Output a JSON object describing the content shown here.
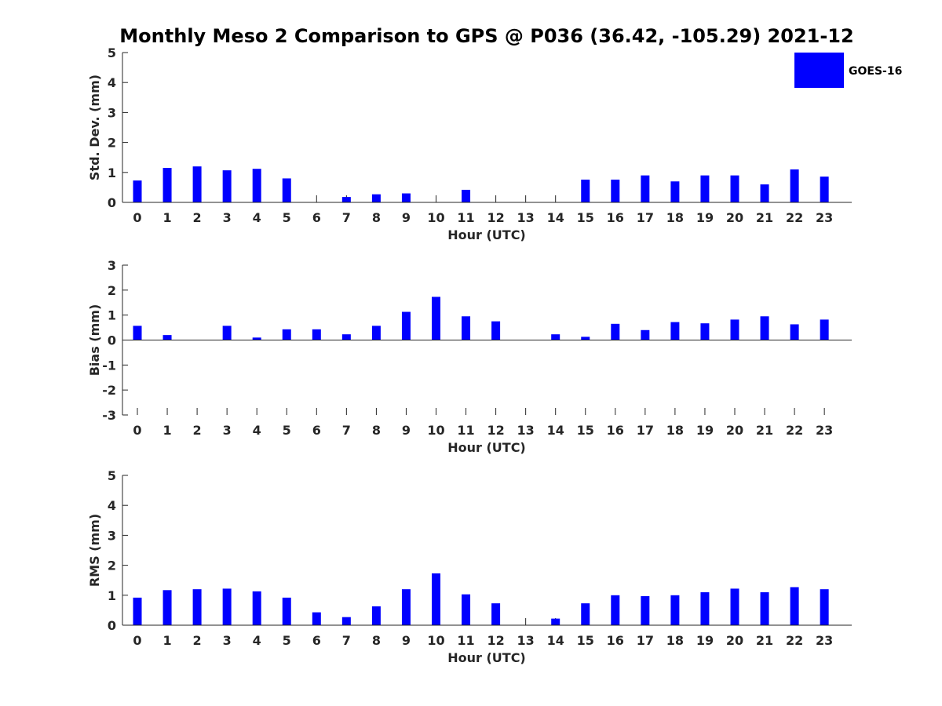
{
  "chart_data": {
    "title": "Monthly Meso 2 Comparison to GPS @ P036 (36.42, -105.29) 2021-12",
    "legend": {
      "label": "GOES-16",
      "color": "#0000ff",
      "placement": "top-right"
    },
    "subplots": [
      {
        "type": "bar",
        "ylabel": "Std. Dev. (mm)",
        "xlabel": "Hour (UTC)",
        "categories": [
          "0",
          "1",
          "2",
          "3",
          "4",
          "5",
          "6",
          "7",
          "8",
          "9",
          "10",
          "11",
          "12",
          "13",
          "14",
          "15",
          "16",
          "17",
          "18",
          "19",
          "20",
          "21",
          "22",
          "23"
        ],
        "ylim": [
          0,
          5
        ],
        "yticks": [
          "0",
          "1",
          "2",
          "3",
          "4",
          "5"
        ],
        "series": [
          {
            "name": "GOES-16",
            "values": [
              0.73,
              1.15,
              1.2,
              1.07,
              1.12,
              0.8,
              0,
              0.18,
              0.27,
              0.3,
              0,
              0.42,
              0,
              0,
              0,
              0.76,
              0.76,
              0.9,
              0.7,
              0.9,
              0.9,
              0.6,
              1.1,
              0.86
            ]
          }
        ]
      },
      {
        "type": "bar",
        "ylabel": "Bias (mm)",
        "xlabel": "Hour (UTC)",
        "categories": [
          "0",
          "1",
          "2",
          "3",
          "4",
          "5",
          "6",
          "7",
          "8",
          "9",
          "10",
          "11",
          "12",
          "13",
          "14",
          "15",
          "16",
          "17",
          "18",
          "19",
          "20",
          "21",
          "22",
          "23"
        ],
        "ylim": [
          -3,
          3
        ],
        "yticks": [
          "-3",
          "-2",
          "-1",
          "0",
          "1",
          "2",
          "3"
        ],
        "series": [
          {
            "name": "GOES-16",
            "values": [
              0.57,
              0.2,
              0,
              0.57,
              0.1,
              0.43,
              0.43,
              0.23,
              0.57,
              1.13,
              1.73,
              0.95,
              0.75,
              0,
              0.23,
              0.13,
              0.65,
              0.4,
              0.72,
              0.67,
              0.82,
              0.95,
              0.63,
              0.82
            ]
          }
        ]
      },
      {
        "type": "bar",
        "ylabel": "RMS (mm)",
        "xlabel": "Hour (UTC)",
        "categories": [
          "0",
          "1",
          "2",
          "3",
          "4",
          "5",
          "6",
          "7",
          "8",
          "9",
          "10",
          "11",
          "12",
          "13",
          "14",
          "15",
          "16",
          "17",
          "18",
          "19",
          "20",
          "21",
          "22",
          "23"
        ],
        "ylim": [
          0,
          5
        ],
        "yticks": [
          "0",
          "1",
          "2",
          "3",
          "4",
          "5"
        ],
        "series": [
          {
            "name": "GOES-16",
            "values": [
              0.92,
              1.17,
              1.2,
              1.22,
              1.13,
              0.92,
              0.43,
              0.27,
              0.63,
              1.2,
              1.73,
              1.03,
              0.73,
              0,
              0.22,
              0.73,
              1.0,
              0.97,
              1.0,
              1.1,
              1.22,
              1.1,
              1.27,
              1.2
            ]
          }
        ]
      }
    ]
  }
}
